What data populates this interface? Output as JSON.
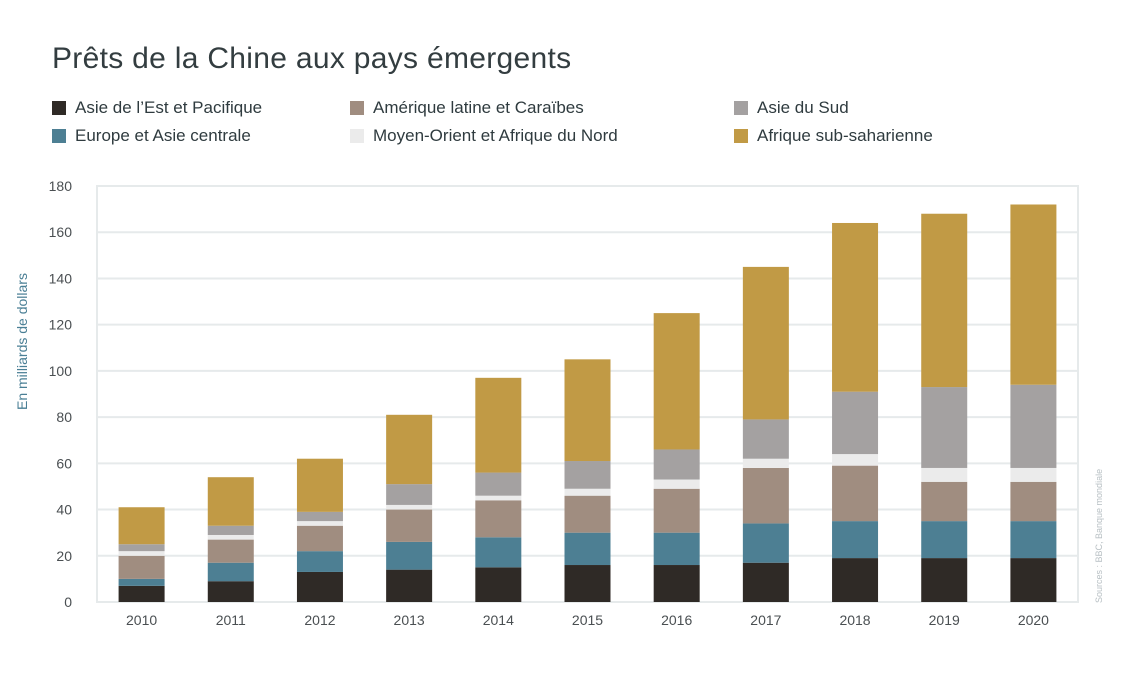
{
  "chart_data": {
    "type": "bar",
    "stacked": true,
    "title": "Prêts de la Chine aux pays émergents",
    "ylabel": "En milliards de dollars",
    "source": "Sources : BBC, Banque mondiale",
    "ylim": [
      0,
      180
    ],
    "yticks": [
      0,
      20,
      40,
      60,
      80,
      100,
      120,
      140,
      160,
      180
    ],
    "grid": true,
    "legend_position": "top",
    "categories": [
      "2010",
      "2011",
      "2012",
      "2013",
      "2014",
      "2015",
      "2016",
      "2017",
      "2018",
      "2019",
      "2020"
    ],
    "series": [
      {
        "name": "Asie de l’Est et Pacifique",
        "color": "#2f2a26",
        "values": [
          7,
          9,
          13,
          14,
          15,
          16,
          16,
          17,
          19,
          19,
          19
        ]
      },
      {
        "name": "Europe et Asie centrale",
        "color": "#4d7f93",
        "values": [
          3,
          8,
          9,
          12,
          13,
          14,
          14,
          17,
          16,
          16,
          16
        ]
      },
      {
        "name": "Amérique latine et Caraïbes",
        "color": "#a08d80",
        "values": [
          10,
          10,
          11,
          14,
          16,
          16,
          19,
          24,
          24,
          17,
          17
        ]
      },
      {
        "name": "Moyen-Orient et Afrique du Nord",
        "color": "#ebebeb",
        "values": [
          2,
          2,
          2,
          2,
          2,
          3,
          4,
          4,
          5,
          6,
          6
        ]
      },
      {
        "name": "Asie du Sud",
        "color": "#a4a1a1",
        "values": [
          3,
          4,
          4,
          9,
          10,
          12,
          13,
          17,
          27,
          35,
          36
        ]
      },
      {
        "name": "Afrique sub-saharienne",
        "color": "#c19a45",
        "values": [
          16,
          21,
          23,
          30,
          41,
          44,
          59,
          66,
          73,
          75,
          78
        ]
      }
    ]
  },
  "legend_items": [
    {
      "name": "Asie de l’Est et Pacifique",
      "color": "#2f2a26"
    },
    {
      "name": "Amérique latine et Caraïbes",
      "color": "#a08d80"
    },
    {
      "name": "Asie du Sud",
      "color": "#a4a1a1"
    },
    {
      "name": "Europe et Asie centrale",
      "color": "#4d7f93"
    },
    {
      "name": "Moyen-Orient et Afrique du Nord",
      "color": "#ebebeb"
    },
    {
      "name": "Afrique sub-saharienne",
      "color": "#c19a45"
    }
  ]
}
